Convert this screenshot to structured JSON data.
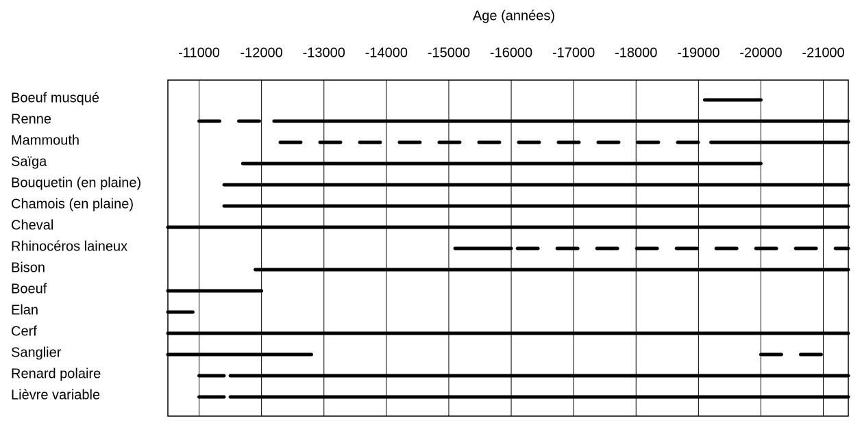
{
  "chart_data": {
    "type": "timeline",
    "title": "Age (années)",
    "xlim": [
      -10500,
      -21400
    ],
    "xticks": [
      -11000,
      -12000,
      -13000,
      -14000,
      -15000,
      -16000,
      -17000,
      -18000,
      -19000,
      -20000,
      -21000
    ],
    "grid": true,
    "color": "#000000",
    "categories": [
      "Boeuf musqué",
      "Renne",
      "Mammouth",
      "Saïga",
      "Bouquetin (en plaine)",
      "Chamois (en plaine)",
      "Cheval",
      "Rhinocéros laineux",
      "Bison",
      "Boeuf",
      "Elan",
      "Cerf",
      "Sanglier",
      "Renard polaire",
      "Lièvre variable"
    ],
    "ranges": [
      [
        {
          "start": -19100,
          "end": -20000,
          "line_style": "solid"
        }
      ],
      [
        {
          "start": -11000,
          "end": -12000,
          "line_style": "dashed"
        },
        {
          "start": -12200,
          "end": -21400,
          "line_style": "solid"
        }
      ],
      [
        {
          "start": -12300,
          "end": -19000,
          "line_style": "dashed"
        },
        {
          "start": -19200,
          "end": -21400,
          "line_style": "solid"
        }
      ],
      [
        {
          "start": -11700,
          "end": -20000,
          "line_style": "solid"
        }
      ],
      [
        {
          "start": -11400,
          "end": -21400,
          "line_style": "solid"
        }
      ],
      [
        {
          "start": -11400,
          "end": -21400,
          "line_style": "solid"
        }
      ],
      [
        {
          "start": -10500,
          "end": -21400,
          "line_style": "solid"
        }
      ],
      [
        {
          "start": -15100,
          "end": -16000,
          "line_style": "solid"
        },
        {
          "start": -16100,
          "end": -21400,
          "line_style": "dashed"
        }
      ],
      [
        {
          "start": -11900,
          "end": -21400,
          "line_style": "solid"
        }
      ],
      [
        {
          "start": -10500,
          "end": -12000,
          "line_style": "solid"
        }
      ],
      [
        {
          "start": -10500,
          "end": -10900,
          "line_style": "solid"
        }
      ],
      [
        {
          "start": -10500,
          "end": -21400,
          "line_style": "solid"
        }
      ],
      [
        {
          "start": -10500,
          "end": -12800,
          "line_style": "solid"
        },
        {
          "start": -20000,
          "end": -21000,
          "line_style": "dashed"
        }
      ],
      [
        {
          "start": -11000,
          "end": -11400,
          "line_style": "solid"
        },
        {
          "start": -11500,
          "end": -21400,
          "line_style": "solid"
        }
      ],
      [
        {
          "start": -11000,
          "end": -11400,
          "line_style": "solid"
        },
        {
          "start": -11500,
          "end": -21400,
          "line_style": "solid"
        }
      ]
    ]
  }
}
